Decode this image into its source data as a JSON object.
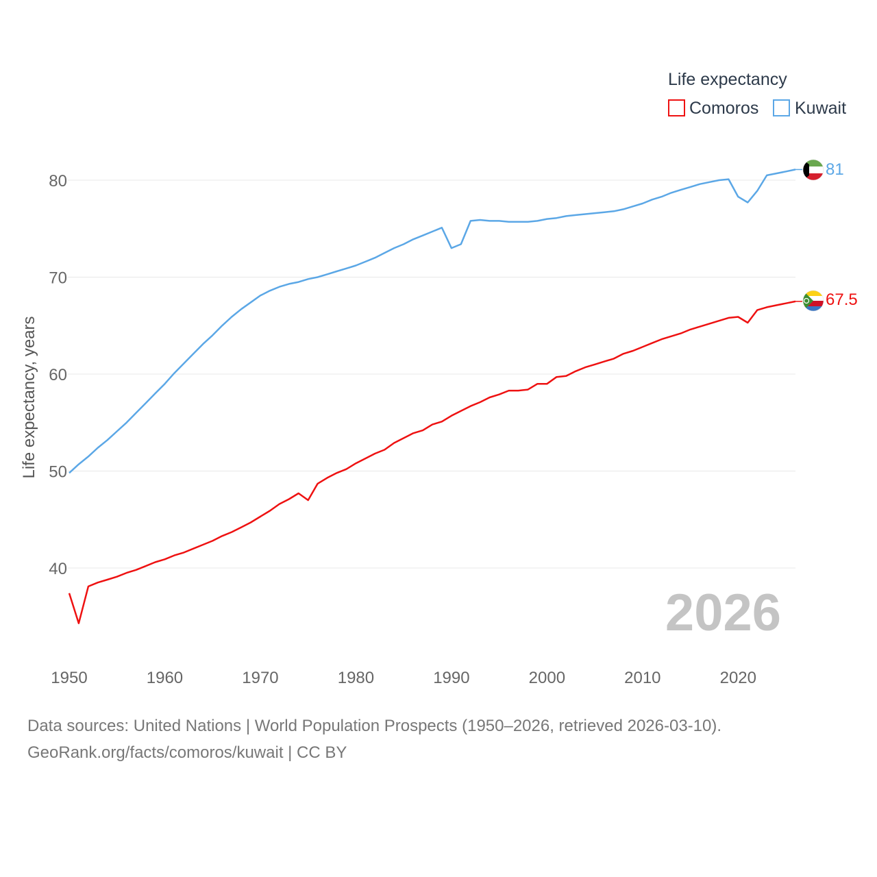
{
  "colors": {
    "comoros": "#ee1111",
    "kuwait": "#5ba7e6",
    "grid": "#e8e8e8",
    "text": "#666666",
    "year": "#c4c4c4"
  },
  "chart_data": {
    "type": "line",
    "title": "",
    "legend_title": "Life expectancy",
    "legend_position": "top-right",
    "ylabel": "Life expectancy, years",
    "xlabel": "",
    "xlim": [
      1950,
      2026
    ],
    "ylim": [
      33.5,
      82.5
    ],
    "x_ticks": [
      1950,
      1960,
      1970,
      1980,
      1990,
      2000,
      2010,
      2020
    ],
    "y_ticks": [
      40,
      50,
      60,
      70,
      80
    ],
    "grid": true,
    "year_label": "2026",
    "x": [
      1950,
      1951,
      1952,
      1953,
      1954,
      1955,
      1956,
      1957,
      1958,
      1959,
      1960,
      1961,
      1962,
      1963,
      1964,
      1965,
      1966,
      1967,
      1968,
      1969,
      1970,
      1971,
      1972,
      1973,
      1974,
      1975,
      1976,
      1977,
      1978,
      1979,
      1980,
      1981,
      1982,
      1983,
      1984,
      1985,
      1986,
      1987,
      1988,
      1989,
      1990,
      1991,
      1992,
      1993,
      1994,
      1995,
      1996,
      1997,
      1998,
      1999,
      2000,
      2001,
      2002,
      2003,
      2004,
      2005,
      2006,
      2007,
      2008,
      2009,
      2010,
      2011,
      2012,
      2013,
      2014,
      2015,
      2016,
      2017,
      2018,
      2019,
      2020,
      2021,
      2022,
      2023,
      2024,
      2025,
      2026
    ],
    "series": [
      {
        "name": "Comoros",
        "color": "#ee1111",
        "end_label": "67.5",
        "values": [
          37.4,
          34.3,
          38.1,
          38.5,
          38.8,
          39.1,
          39.5,
          39.8,
          40.2,
          40.6,
          40.9,
          41.3,
          41.6,
          42.0,
          42.4,
          42.8,
          43.3,
          43.7,
          44.2,
          44.7,
          45.3,
          45.9,
          46.6,
          47.1,
          47.7,
          47.0,
          48.7,
          49.3,
          49.8,
          50.2,
          50.8,
          51.3,
          51.8,
          52.2,
          52.9,
          53.4,
          53.9,
          54.2,
          54.8,
          55.1,
          55.7,
          56.2,
          56.7,
          57.1,
          57.6,
          57.9,
          58.3,
          58.3,
          58.4,
          59.0,
          59.0,
          59.7,
          59.8,
          60.3,
          60.7,
          61.0,
          61.3,
          61.6,
          62.1,
          62.4,
          62.8,
          63.2,
          63.6,
          63.9,
          64.2,
          64.6,
          64.9,
          65.2,
          65.5,
          65.8,
          65.9,
          65.3,
          66.6,
          66.9,
          67.1,
          67.3,
          67.5
        ]
      },
      {
        "name": "Kuwait",
        "color": "#5ba7e6",
        "end_label": "81",
        "values": [
          49.8,
          50.7,
          51.5,
          52.4,
          53.2,
          54.1,
          55.0,
          56.0,
          57.0,
          58.0,
          59.0,
          60.1,
          61.1,
          62.1,
          63.1,
          64.0,
          65.0,
          65.9,
          66.7,
          67.4,
          68.1,
          68.6,
          69.0,
          69.3,
          69.5,
          69.8,
          70.0,
          70.3,
          70.6,
          70.9,
          71.2,
          71.6,
          72.0,
          72.5,
          73.0,
          73.4,
          73.9,
          74.3,
          74.7,
          75.1,
          73.0,
          73.4,
          75.8,
          75.9,
          75.8,
          75.8,
          75.7,
          75.7,
          75.7,
          75.8,
          76.0,
          76.1,
          76.3,
          76.4,
          76.5,
          76.6,
          76.7,
          76.8,
          77.0,
          77.3,
          77.6,
          78.0,
          78.3,
          78.7,
          79.0,
          79.3,
          79.6,
          79.8,
          80.0,
          80.1,
          78.3,
          77.7,
          78.9,
          80.5,
          80.7,
          80.9,
          81.1
        ]
      }
    ]
  },
  "footer": {
    "line1": "Data sources: United Nations | World Population Prospects (1950–2026, retrieved 2026-03-10).",
    "line2": "GeoRank.org/facts/comoros/kuwait | CC BY"
  }
}
